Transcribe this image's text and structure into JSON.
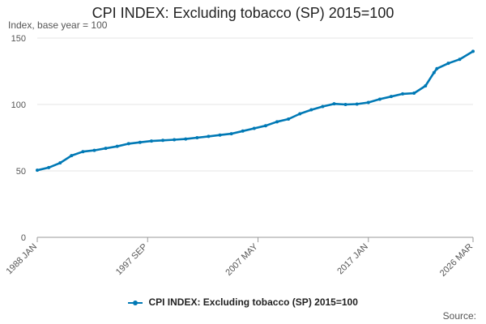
{
  "chart_data": {
    "type": "line",
    "title": "CPI INDEX: Excluding tobacco (SP) 2015=100",
    "ylabel": "Index, base year = 100",
    "xlabel": "",
    "ylim": [
      0,
      150
    ],
    "yticks": [
      0,
      50,
      100,
      150
    ],
    "xlim": [
      "1988 JAN",
      "2026 MAR"
    ],
    "xticks": [
      "1988 JAN",
      "1997 SEP",
      "2007 MAY",
      "2017 JAN",
      "2026 MAR"
    ],
    "grid": "horizontal",
    "legend_position": "bottom",
    "color": "#0079b5",
    "series": [
      {
        "name": "CPI INDEX: Excluding tobacco (SP) 2015=100",
        "x": [
          "1988 JAN",
          "1989 JAN",
          "1990 JAN",
          "1991 JAN",
          "1992 JAN",
          "1993 JAN",
          "1994 JAN",
          "1995 JAN",
          "1996 JAN",
          "1997 JAN",
          "1998 JAN",
          "1999 JAN",
          "2000 JAN",
          "2001 JAN",
          "2002 JAN",
          "2003 JAN",
          "2004 JAN",
          "2005 JAN",
          "2006 JAN",
          "2007 JAN",
          "2008 JAN",
          "2009 JAN",
          "2010 JAN",
          "2011 JAN",
          "2012 JAN",
          "2013 JAN",
          "2014 JAN",
          "2015 JAN",
          "2016 JAN",
          "2017 JAN",
          "2018 JAN",
          "2019 JAN",
          "2020 JAN",
          "2021 JAN",
          "2022 JAN",
          "2022 OCT",
          "2023 JAN",
          "2024 JAN",
          "2025 JAN",
          "2026 MAR"
        ],
        "values": [
          50.5,
          52.5,
          56.0,
          61.5,
          64.5,
          65.5,
          67.0,
          68.5,
          70.5,
          71.5,
          72.5,
          73.0,
          73.5,
          74.0,
          75.0,
          76.0,
          77.0,
          78.0,
          80.0,
          82.0,
          84.0,
          87.0,
          89.0,
          93.0,
          96.0,
          98.5,
          100.5,
          100.0,
          100.3,
          101.5,
          104.0,
          106.0,
          108.0,
          108.5,
          114.0,
          124.0,
          127.0,
          131.0,
          134.0,
          140.0
        ]
      }
    ]
  },
  "legend": {
    "label": "CPI INDEX: Excluding tobacco (SP) 2015=100"
  },
  "source": {
    "label": "Source:"
  }
}
